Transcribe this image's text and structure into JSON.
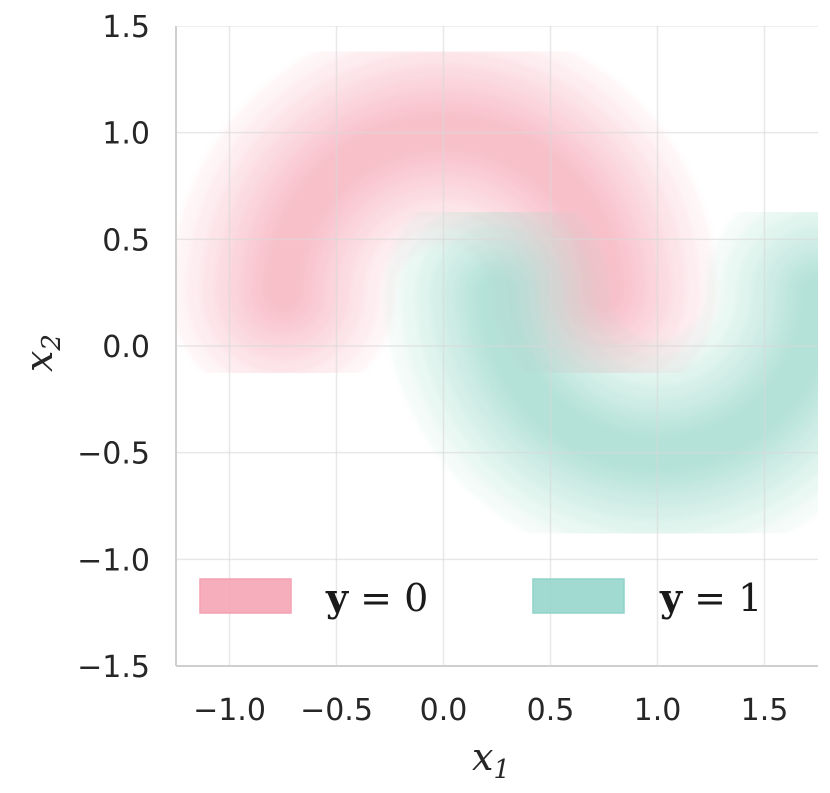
{
  "chart_data": {
    "type": "contour",
    "title": "",
    "xlabel": "x",
    "xlabel_sub": "1",
    "ylabel": "x",
    "ylabel_sub": "2",
    "xlim": [
      -1.25,
      1.75
    ],
    "ylim": [
      -1.5,
      1.5
    ],
    "xticks": [
      -1.0,
      -0.5,
      0.0,
      0.5,
      1.0,
      1.5
    ],
    "xtick_labels": [
      "−1.0",
      "−0.5",
      "0.0",
      "0.5",
      "1.0",
      "1.5"
    ],
    "yticks": [
      -1.5,
      -1.0,
      -0.5,
      0.0,
      0.5,
      1.0,
      1.5
    ],
    "ytick_labels": [
      "−1.5",
      "−1.0",
      "−0.5",
      "0.0",
      "0.5",
      "1.0",
      "1.5"
    ],
    "grid": true,
    "legend_position": "bottom",
    "series": [
      {
        "name_var": "y",
        "name_eq": " = 0",
        "color": "#f4a0b0",
        "description_kind": "upper-moon density",
        "arc_center": [
          0.0,
          0.25
        ],
        "arc_radius": 0.75,
        "arc_angles_deg": [
          180,
          0
        ]
      },
      {
        "name_var": "y",
        "name_eq": " = 1",
        "color": "#8fd3c9",
        "description_kind": "lower-moon density",
        "arc_center": [
          1.0,
          0.25
        ],
        "arc_radius": 0.75,
        "arc_angles_deg": [
          180,
          360
        ]
      }
    ]
  }
}
